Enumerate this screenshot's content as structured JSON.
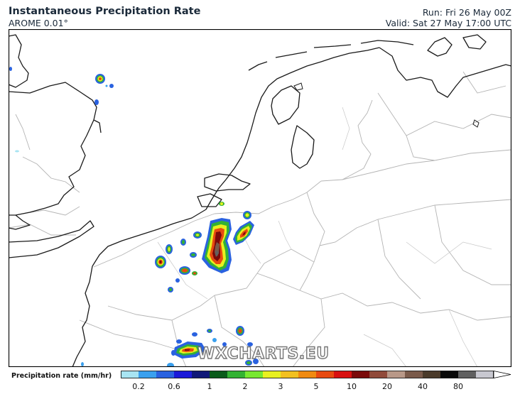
{
  "header": {
    "title": "Instantaneous Precipitation Rate",
    "subtitle": "AROME 0.01°",
    "run": "Run: Fri 26 May 00Z",
    "valid": "Valid: Sat 27 May 17:00 UTC"
  },
  "watermark": "WXCHARTS.EU",
  "legend": {
    "label": "Precipitation rate (mm/hr)",
    "ticks": [
      "0.2",
      "0.6",
      "1",
      "2",
      "3",
      "5",
      "10",
      "20",
      "40",
      "80"
    ],
    "colors": [
      "#a8e4f2",
      "#3aa0ee",
      "#2a62e0",
      "#1c1ad8",
      "#101878",
      "#0a5a1a",
      "#33b233",
      "#78e830",
      "#e8f020",
      "#f2c020",
      "#f08a10",
      "#e84a10",
      "#d81010",
      "#7a0a0a",
      "#904a3a",
      "#b89888",
      "#7a5a4a",
      "#4a3a2a",
      "#0a0a0a",
      "#606060",
      "#c8c8d0"
    ]
  },
  "map": {
    "region": "Benelux and surroundings",
    "precip_cells": [
      {
        "area": "central Belgium (Brussels–Namur band)",
        "intensity": "heavy"
      },
      {
        "area": "east Belgium / Limburg",
        "intensity": "heavy"
      },
      {
        "area": "northern France near Lille",
        "intensity": "moderate"
      },
      {
        "area": "Champagne / Ardennes, northern France",
        "intensity": "heavy"
      },
      {
        "area": "east England coast",
        "intensity": "light"
      }
    ]
  }
}
